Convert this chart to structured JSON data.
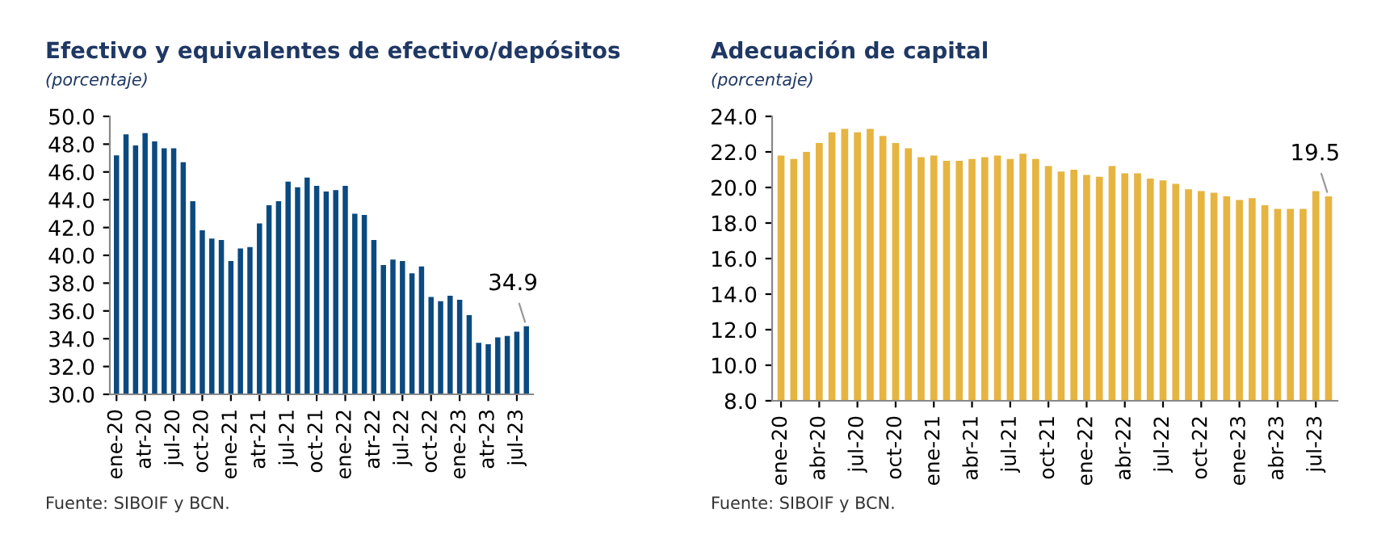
{
  "chart_data": [
    {
      "type": "bar",
      "title": "Efectivo y equivalentes de efectivo/depósitos",
      "subtitle": "(porcentaje)",
      "categories": [
        "ene-20",
        null,
        null,
        "atr-20",
        null,
        null,
        "jul-20",
        null,
        null,
        "oct-20",
        null,
        null,
        "ene-21",
        null,
        null,
        "atr-21",
        null,
        null,
        "jul-21",
        null,
        null,
        "oct-21",
        null,
        null,
        "ene-22",
        null,
        null,
        "atr-22",
        null,
        null,
        "jul-22",
        null,
        null,
        "oct-22",
        null,
        null,
        "ene-23",
        null,
        null,
        "atr-23",
        null,
        null,
        "jul-23",
        null
      ],
      "series": [
        {
          "color": "#0b4a80",
          "values": [
            47.2,
            48.7,
            47.9,
            48.8,
            48.2,
            47.7,
            47.7,
            46.7,
            43.9,
            41.8,
            41.2,
            41.1,
            39.6,
            40.5,
            40.6,
            42.3,
            43.6,
            43.9,
            45.3,
            44.9,
            45.6,
            45.0,
            44.6,
            44.7,
            45.0,
            43.0,
            42.9,
            41.1,
            39.3,
            39.7,
            39.6,
            38.7,
            39.2,
            37.0,
            36.7,
            37.1,
            36.8,
            35.7,
            33.7,
            33.6,
            34.1,
            34.2,
            34.5,
            34.9
          ],
          "value_labels": [
            null,
            null,
            null,
            null,
            null,
            null,
            null,
            null,
            null,
            null,
            null,
            null,
            null,
            null,
            null,
            null,
            null,
            null,
            null,
            null,
            null,
            null,
            null,
            null,
            null,
            null,
            null,
            null,
            null,
            null,
            null,
            null,
            null,
            null,
            null,
            null,
            null,
            null,
            null,
            null,
            null,
            null,
            null,
            "34.9"
          ]
        }
      ],
      "ylim": [
        30.0,
        50.0
      ],
      "yticks": [
        {
          "value": 30,
          "label": "30.0"
        },
        {
          "value": 32,
          "label": "32.0"
        },
        {
          "value": 34,
          "label": "34.0"
        },
        {
          "value": 36,
          "label": "36.0"
        },
        {
          "value": 38,
          "label": "38.0"
        },
        {
          "value": 40,
          "label": "40.0"
        },
        {
          "value": 42,
          "label": "42.0"
        },
        {
          "value": 44,
          "label": "44.0"
        },
        {
          "value": 46,
          "label": "46.0"
        },
        {
          "value": 48,
          "label": "48.0"
        },
        {
          "value": 50,
          "label": "50.0"
        }
      ],
      "grid": false,
      "legend": false,
      "annotations": [
        "Fuente: SIBOIF y BCN."
      ]
    },
    {
      "type": "bar",
      "title": "Adecuación de capital",
      "subtitle": "(porcentaje)",
      "categories": [
        "ene-20",
        null,
        null,
        "abr-20",
        null,
        null,
        "jul-20",
        null,
        null,
        "oct-20",
        null,
        null,
        "ene-21",
        null,
        null,
        "abr-21",
        null,
        null,
        "jul-21",
        null,
        null,
        "oct-21",
        null,
        null,
        "ene-22",
        null,
        null,
        "abr-22",
        null,
        null,
        "jul-22",
        null,
        null,
        "oct-22",
        null,
        null,
        "ene-23",
        null,
        null,
        "abr-23",
        null,
        null,
        "jul-23",
        null
      ],
      "series": [
        {
          "color": "#e6b440",
          "values": [
            21.8,
            21.6,
            22.0,
            22.5,
            23.1,
            23.3,
            23.1,
            23.3,
            22.9,
            22.5,
            22.2,
            21.7,
            21.8,
            21.5,
            21.5,
            21.6,
            21.7,
            21.8,
            21.6,
            21.9,
            21.6,
            21.2,
            20.9,
            21.0,
            20.7,
            20.6,
            21.2,
            20.8,
            20.8,
            20.5,
            20.4,
            20.2,
            19.9,
            19.8,
            19.7,
            19.5,
            19.3,
            19.4,
            19.0,
            18.8,
            18.8,
            18.8,
            19.8,
            19.5
          ],
          "value_labels": [
            null,
            null,
            null,
            null,
            null,
            null,
            null,
            null,
            null,
            null,
            null,
            null,
            null,
            null,
            null,
            null,
            null,
            null,
            null,
            null,
            null,
            null,
            null,
            null,
            null,
            null,
            null,
            null,
            null,
            null,
            null,
            null,
            null,
            null,
            null,
            null,
            null,
            null,
            null,
            null,
            null,
            null,
            null,
            "19.5"
          ]
        }
      ],
      "ylim": [
        8.0,
        24.0
      ],
      "yticks": [
        {
          "value": 8,
          "label": "8.0"
        },
        {
          "value": 10,
          "label": "10.0"
        },
        {
          "value": 12,
          "label": "12.0"
        },
        {
          "value": 14,
          "label": "14.0"
        },
        {
          "value": 16,
          "label": "16.0"
        },
        {
          "value": 18,
          "label": "18.0"
        },
        {
          "value": 20,
          "label": "20.0"
        },
        {
          "value": 22,
          "label": "22.0"
        },
        {
          "value": 24,
          "label": "24.0"
        }
      ],
      "grid": false,
      "legend": false,
      "annotations": [
        "Fuente: SIBOIF y BCN."
      ]
    }
  ]
}
